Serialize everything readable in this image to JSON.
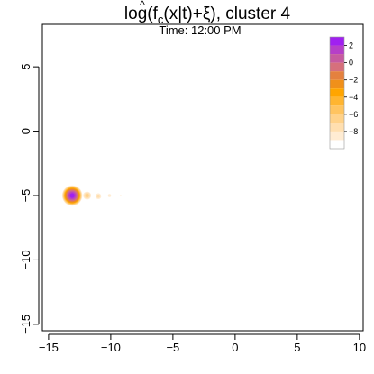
{
  "chart_data": {
    "type": "heatmap",
    "title": {
      "prefix": "log(",
      "f": "f",
      "hat": "^",
      "sub": "c",
      "middle": "(x|t)",
      "plus": "+",
      "xi": "ξ",
      "suffix": "), cluster 4"
    },
    "subtitle": "Time:  12:00 PM",
    "xlabel": "",
    "ylabel": "",
    "xlim": [
      -15.5,
      10.3
    ],
    "ylim": [
      -15.5,
      8.3
    ],
    "x_ticks": [
      {
        "value": -15,
        "label": "−15"
      },
      {
        "value": -10,
        "label": "−10"
      },
      {
        "value": -5,
        "label": "−5"
      },
      {
        "value": 0,
        "label": "0"
      },
      {
        "value": 5,
        "label": "5"
      },
      {
        "value": 10,
        "label": "10"
      }
    ],
    "y_ticks": [
      {
        "value": -15,
        "label": "−15"
      },
      {
        "value": -10,
        "label": "−10"
      },
      {
        "value": -5,
        "label": "−5"
      },
      {
        "value": 0,
        "label": "0"
      },
      {
        "value": 5,
        "label": "5"
      }
    ],
    "colorbar": {
      "ticks": [
        {
          "value": 2,
          "label": "2"
        },
        {
          "value": 0,
          "label": "0"
        },
        {
          "value": -2,
          "label": "−2"
        },
        {
          "value": -4,
          "label": "−4"
        },
        {
          "value": -6,
          "label": "−6"
        },
        {
          "value": -8,
          "label": "−8"
        }
      ],
      "range": [
        -10,
        3
      ],
      "bins": [
        {
          "from": 2,
          "to": 3,
          "color": "#a020f0"
        },
        {
          "from": 1,
          "to": 2,
          "color": "#b63fc8"
        },
        {
          "from": 0,
          "to": 1,
          "color": "#c65ba0"
        },
        {
          "from": -1,
          "to": 0,
          "color": "#d6707c"
        },
        {
          "from": -2,
          "to": -1,
          "color": "#e4813f"
        },
        {
          "from": -3,
          "to": -2,
          "color": "#f0901a"
        },
        {
          "from": -4,
          "to": -3,
          "color": "#ffa500"
        },
        {
          "from": -5,
          "to": -4,
          "color": "#ffb530"
        },
        {
          "from": -6,
          "to": -5,
          "color": "#ffc460"
        },
        {
          "from": -7,
          "to": -6,
          "color": "#ffd28a"
        },
        {
          "from": -8,
          "to": -7,
          "color": "#ffdfb0"
        },
        {
          "from": -9,
          "to": -8,
          "color": "#ffecd3"
        },
        {
          "from": -10,
          "to": -9,
          "color": "#ffffff"
        }
      ]
    },
    "density_blobs": [
      {
        "x": -13.1,
        "y": -5.0,
        "radius": 0.85,
        "peak_level": 2.5
      },
      {
        "x": -11.9,
        "y": -5.0,
        "radius": 0.38,
        "peak_level": -6.5
      },
      {
        "x": -11.0,
        "y": -5.05,
        "radius": 0.3,
        "peak_level": -7.5
      },
      {
        "x": -10.1,
        "y": -5.0,
        "radius": 0.22,
        "peak_level": -8.5
      },
      {
        "x": -9.2,
        "y": -5.0,
        "radius": 0.15,
        "peak_level": -9.0
      }
    ]
  }
}
